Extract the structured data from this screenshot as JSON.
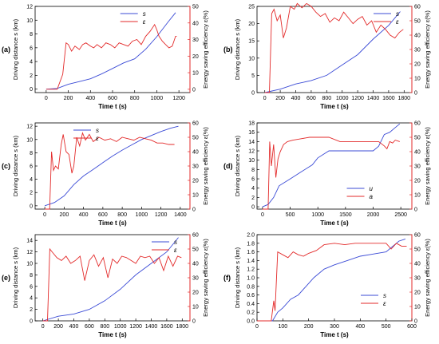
{
  "figure": {
    "background": "#ffffff"
  },
  "colors": {
    "distance": "#3b4bd6",
    "efficiency": "#e32a2a",
    "axis_right": "#e32a2a",
    "axis_left": "#000000"
  },
  "chart_data": [
    {
      "type": "line",
      "panel_label": "(a)",
      "xlabel": "Time t (s)",
      "ylabel_left": "Driving distance s (km)",
      "ylabel_right": "Energy saving efficiency  ε(%)",
      "xlim": [
        -100,
        1300
      ],
      "xticks": [
        0,
        200,
        400,
        600,
        800,
        1000,
        1200
      ],
      "ylim_left": [
        -0.5,
        12
      ],
      "yticks_left": [
        0,
        2,
        4,
        6,
        8,
        10,
        12
      ],
      "ylim_right": [
        -2,
        50
      ],
      "yticks_right": [
        0,
        10,
        20,
        30,
        40,
        50
      ],
      "legend": {
        "position": "top-center",
        "entries": [
          "s",
          "ε"
        ]
      },
      "series": [
        {
          "name": "s",
          "axis": "left",
          "x": [
            0,
            100,
            200,
            300,
            400,
            500,
            600,
            700,
            800,
            900,
            1000,
            1100,
            1170
          ],
          "values": [
            0,
            0.1,
            0.7,
            1.1,
            1.5,
            2.2,
            3.0,
            3.8,
            4.4,
            5.8,
            7.6,
            9.7,
            11.1
          ]
        },
        {
          "name": "ε",
          "axis": "right",
          "x": [
            0,
            100,
            150,
            180,
            200,
            230,
            260,
            300,
            330,
            360,
            400,
            430,
            460,
            500,
            540,
            580,
            620,
            660,
            700,
            740,
            780,
            820,
            860,
            900,
            940,
            980,
            1000,
            1020,
            1050,
            1080,
            1110,
            1140,
            1170,
            1180
          ],
          "values": [
            0,
            0,
            9,
            28,
            27,
            23,
            26,
            24,
            27,
            28,
            26,
            25,
            27,
            25,
            28,
            27,
            25,
            28,
            27,
            26,
            29,
            30,
            27,
            32,
            35,
            39,
            36,
            32,
            29,
            27,
            25,
            26,
            32,
            32
          ]
        }
      ]
    },
    {
      "type": "line",
      "panel_label": "(b)",
      "xlabel": "Time t (s)",
      "ylabel_left": "Driving distance s (km)",
      "ylabel_right": "Energy saving efficiency  ε(%)",
      "xlim": [
        -100,
        1900
      ],
      "xticks": [
        0,
        200,
        400,
        600,
        800,
        1000,
        1200,
        1400,
        1600,
        1800
      ],
      "ylim_left": [
        0,
        25
      ],
      "yticks_left": [
        0,
        5,
        10,
        15,
        20,
        25
      ],
      "ylim_right": [
        0,
        60
      ],
      "yticks_right": [
        0,
        10,
        20,
        30,
        40,
        50,
        60
      ],
      "legend": {
        "position": "top-right",
        "entries": [
          "s",
          "ε"
        ]
      },
      "series": [
        {
          "name": "s",
          "axis": "left",
          "x": [
            0,
            200,
            400,
            600,
            800,
            1000,
            1200,
            1400,
            1600,
            1750
          ],
          "values": [
            0,
            1.0,
            2.5,
            3.5,
            5.0,
            8.0,
            11.0,
            15.5,
            19.5,
            23.5
          ]
        },
        {
          "name": "ε",
          "axis": "right",
          "x": [
            0,
            60,
            90,
            120,
            160,
            200,
            240,
            280,
            330,
            380,
            420,
            480,
            540,
            600,
            660,
            720,
            780,
            840,
            900,
            960,
            1020,
            1080,
            1140,
            1200,
            1260,
            1320,
            1380,
            1440,
            1500,
            1560,
            1620,
            1680,
            1740,
            1790
          ],
          "values": [
            0,
            0,
            55,
            58,
            50,
            54,
            38,
            45,
            60,
            58,
            62,
            59,
            62,
            60,
            56,
            53,
            55,
            49,
            52,
            50,
            56,
            52,
            48,
            51,
            53,
            47,
            50,
            42,
            47,
            44,
            40,
            38,
            42,
            44
          ]
        }
      ]
    },
    {
      "type": "line",
      "panel_label": "(c)",
      "xlabel": "Time t (s)",
      "ylabel_left": "Driving distance s (km)",
      "ylabel_right": "Energy saving efficiency  ε(%)",
      "xlim": [
        -100,
        1500
      ],
      "xticks": [
        0,
        200,
        400,
        600,
        800,
        1000,
        1200,
        1400
      ],
      "ylim_left": [
        -0.5,
        12.5
      ],
      "yticks_left": [
        0,
        2,
        4,
        6,
        8,
        10,
        12
      ],
      "ylim_right": [
        0,
        60
      ],
      "yticks_right": [
        0,
        10,
        20,
        30,
        40,
        50,
        60
      ],
      "legend": {
        "position": "top-left",
        "entries": [
          "s",
          "ε"
        ]
      },
      "series": [
        {
          "name": "s",
          "axis": "left",
          "x": [
            0,
            100,
            200,
            300,
            400,
            500,
            600,
            700,
            800,
            900,
            1000,
            1100,
            1200,
            1300,
            1380
          ],
          "values": [
            0,
            0.5,
            1.5,
            3.2,
            4.5,
            5.5,
            6.5,
            7.5,
            8.4,
            9.2,
            10.0,
            10.6,
            11.2,
            11.7,
            12.0
          ]
        },
        {
          "name": "ε",
          "axis": "right",
          "x": [
            0,
            50,
            70,
            90,
            110,
            140,
            170,
            190,
            220,
            250,
            280,
            300,
            330,
            360,
            390,
            420,
            460,
            500,
            560,
            620,
            680,
            740,
            800,
            860,
            920,
            980,
            1040,
            1100,
            1160,
            1220,
            1280,
            1340
          ],
          "values": [
            0,
            0,
            40,
            27,
            30,
            28,
            45,
            52,
            40,
            38,
            25,
            30,
            50,
            44,
            53,
            48,
            52,
            47,
            50,
            48,
            49,
            47,
            50,
            49,
            48,
            50,
            49,
            48,
            46,
            46,
            45,
            45
          ]
        }
      ]
    },
    {
      "type": "line",
      "panel_label": "(d)",
      "xlabel": "Time t (s)",
      "ylabel_left": "Driving distance s (km)",
      "ylabel_right": "Energy saving efficiency  ε(%)",
      "xlim": [
        -100,
        2700
      ],
      "xticks": [
        0,
        500,
        1000,
        1500,
        2000,
        2500
      ],
      "ylim_left": [
        -0.5,
        18
      ],
      "yticks_left": [
        0,
        2,
        4,
        6,
        8,
        10,
        12,
        14,
        16,
        18
      ],
      "ylim_right": [
        0,
        60
      ],
      "yticks_right": [
        0,
        10,
        20,
        30,
        40,
        50,
        60
      ],
      "legend": {
        "position": "bottom-center",
        "entries": [
          "u",
          "a"
        ]
      },
      "series": [
        {
          "name": "u",
          "axis": "left",
          "x": [
            0,
            100,
            200,
            300,
            500,
            700,
            900,
            1000,
            1200,
            1400,
            1600,
            1800,
            2000,
            2100,
            2200,
            2300,
            2400,
            2480
          ],
          "values": [
            0,
            0.5,
            2.0,
            4.5,
            6.0,
            7.5,
            9.0,
            10.5,
            12.0,
            12.0,
            12.0,
            12.0,
            12.0,
            13.0,
            15.5,
            16.0,
            17.0,
            17.8
          ]
        },
        {
          "name": "a",
          "axis": "right",
          "x": [
            0,
            100,
            130,
            160,
            200,
            240,
            280,
            320,
            380,
            450,
            550,
            700,
            850,
            1000,
            1200,
            1400,
            1600,
            1800,
            2000,
            2100,
            2200,
            2250,
            2300,
            2350,
            2400,
            2480
          ],
          "values": [
            0,
            0,
            47,
            30,
            45,
            22,
            35,
            40,
            45,
            47,
            48,
            49,
            50,
            50,
            50,
            47,
            47,
            47,
            47,
            47,
            44,
            42,
            47,
            46,
            48,
            47
          ]
        }
      ]
    },
    {
      "type": "line",
      "panel_label": "(e)",
      "xlabel": "Time t (s)",
      "ylabel_left": "Driving distance s (km)",
      "ylabel_right": "Energy saving efficiency  ε(%)",
      "xlim": [
        -100,
        1900
      ],
      "xticks": [
        0,
        200,
        400,
        600,
        800,
        1000,
        1200,
        1400,
        1600,
        1800
      ],
      "ylim_left": [
        0,
        15
      ],
      "yticks_left": [
        0,
        2,
        4,
        6,
        8,
        10,
        12,
        14
      ],
      "ylim_right": [
        0,
        60
      ],
      "yticks_right": [
        0,
        10,
        20,
        30,
        40,
        50,
        60
      ],
      "legend": {
        "position": "top-right",
        "entries": [
          "s",
          "ε"
        ]
      },
      "series": [
        {
          "name": "s",
          "axis": "left",
          "x": [
            0,
            200,
            400,
            600,
            800,
            1000,
            1200,
            1400,
            1600,
            1750
          ],
          "values": [
            0,
            0.8,
            1.2,
            2.0,
            3.5,
            5.5,
            8.0,
            10.0,
            12.0,
            14.5
          ]
        },
        {
          "name": "ε",
          "axis": "right",
          "x": [
            0,
            60,
            90,
            120,
            180,
            240,
            300,
            360,
            420,
            480,
            540,
            600,
            660,
            720,
            780,
            840,
            900,
            960,
            1020,
            1080,
            1140,
            1200,
            1260,
            1320,
            1380,
            1440,
            1500,
            1560,
            1620,
            1680,
            1740,
            1790
          ],
          "values": [
            0,
            0,
            50,
            48,
            44,
            42,
            45,
            40,
            42,
            45,
            28,
            42,
            46,
            38,
            44,
            30,
            43,
            40,
            45,
            44,
            42,
            40,
            45,
            44,
            45,
            40,
            44,
            35,
            45,
            38,
            45,
            44
          ]
        }
      ]
    },
    {
      "type": "line",
      "panel_label": "(f)",
      "xlabel": "Time t (s)",
      "ylabel_left": "Driving distance s (km)",
      "ylabel_right": "Energy saving efficiency  ε(%)",
      "xlim": [
        0,
        600
      ],
      "xticks": [
        0,
        100,
        200,
        300,
        400,
        500,
        600
      ],
      "ylim_left": [
        0,
        2.0
      ],
      "yticks_left": [
        0.0,
        0.2,
        0.4,
        0.6,
        0.8,
        1.0,
        1.2,
        1.4,
        1.6,
        1.8,
        2.0
      ],
      "ylim_right": [
        0,
        60
      ],
      "yticks_right": [
        0,
        10,
        20,
        30,
        40,
        50,
        60
      ],
      "legend": {
        "position": "bottom-right",
        "entries": [
          "s",
          "ε"
        ]
      },
      "series": [
        {
          "name": "s",
          "axis": "left",
          "x": [
            0,
            60,
            80,
            100,
            130,
            160,
            190,
            220,
            260,
            300,
            350,
            400,
            450,
            500,
            550,
            575
          ],
          "values": [
            0,
            0,
            0.2,
            0.3,
            0.5,
            0.6,
            0.8,
            1.0,
            1.2,
            1.3,
            1.4,
            1.5,
            1.55,
            1.6,
            1.85,
            1.9
          ]
        },
        {
          "name": "ε",
          "axis": "right",
          "x": [
            0,
            55,
            65,
            70,
            80,
            100,
            120,
            140,
            160,
            180,
            200,
            230,
            260,
            300,
            340,
            380,
            420,
            460,
            500,
            520,
            540,
            560,
            580
          ],
          "values": [
            0,
            0,
            14,
            7,
            48,
            46,
            44,
            48,
            46,
            45,
            47,
            49,
            53,
            54,
            53,
            54,
            54,
            54,
            54,
            50,
            54,
            52,
            52
          ]
        }
      ]
    }
  ]
}
